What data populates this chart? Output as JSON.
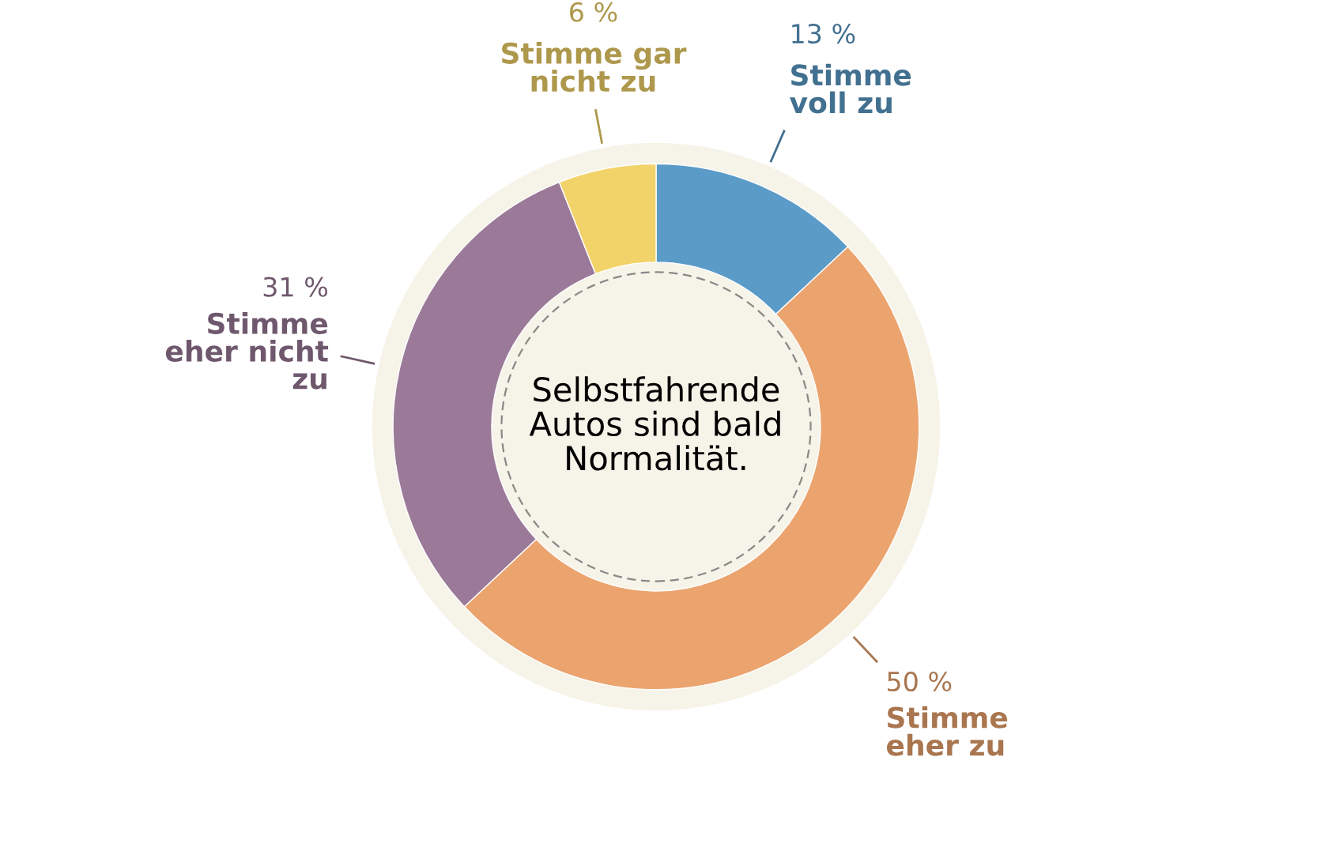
{
  "chart_data": {
    "type": "donut",
    "title": "Selbstfahrende\nAutos sind bald\nNormalität.",
    "categories": [
      "Stimme\nvoll zu",
      "Stimme\neher zu",
      "Stimme\neher nicht\nzu",
      "Stimme gar\nnicht zu"
    ],
    "values": [
      13,
      50,
      31,
      6
    ],
    "value_labels": [
      "13 %",
      "50 %",
      "31 %",
      "6 %"
    ],
    "colors": [
      "#5b9bc8",
      "#eba46e",
      "#9a7a98",
      "#f2d36a"
    ],
    "legend": false
  }
}
